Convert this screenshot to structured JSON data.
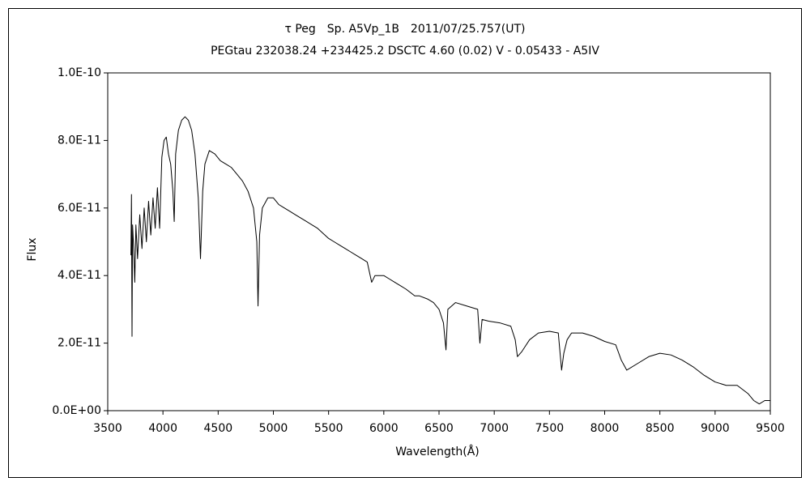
{
  "chart_data": {
    "type": "line",
    "title": "τ Peg　Sp. A5Vp_1B　2011/07/25.757(UT)",
    "subtitle": "PEGtau 232038.24 +234425.2 DSCTC 4.60 (0.02) V - 0.05433 - A5IV",
    "x_label": "Wavelength(Å)",
    "y_label": "Flux",
    "xlim": [
      3500,
      9500
    ],
    "xticks": [
      3500,
      4000,
      4500,
      5000,
      5500,
      6000,
      6500,
      7000,
      7500,
      8000,
      8500,
      9000,
      9500
    ],
    "ylim": [
      0,
      1e-10
    ],
    "yticks": [
      {
        "value": 0,
        "label": "0.0E+00"
      },
      {
        "value": 2e-11,
        "label": "2.0E-11"
      },
      {
        "value": 4e-11,
        "label": "4.0E-11"
      },
      {
        "value": 6e-11,
        "label": "6.0E-11"
      },
      {
        "value": 8e-11,
        "label": "8.0E-11"
      },
      {
        "value": 1e-10,
        "label": "1.0E-10"
      }
    ],
    "grid": false,
    "series": [
      {
        "color": "#000000",
        "x": [
          3710,
          3715,
          3720,
          3725,
          3735,
          3745,
          3755,
          3770,
          3790,
          3810,
          3830,
          3850,
          3870,
          3890,
          3910,
          3930,
          3950,
          3970,
          3990,
          4010,
          4030,
          4050,
          4070,
          4090,
          4102,
          4115,
          4140,
          4170,
          4200,
          4230,
          4260,
          4290,
          4320,
          4340,
          4360,
          4380,
          4420,
          4470,
          4520,
          4570,
          4620,
          4670,
          4720,
          4770,
          4820,
          4850,
          4861,
          4875,
          4900,
          4950,
          5000,
          5050,
          5100,
          5150,
          5200,
          5250,
          5300,
          5350,
          5400,
          5450,
          5500,
          5550,
          5600,
          5650,
          5700,
          5750,
          5800,
          5850,
          5890,
          5920,
          6000,
          6050,
          6100,
          6150,
          6200,
          6280,
          6320,
          6400,
          6450,
          6500,
          6540,
          6563,
          6580,
          6650,
          6750,
          6850,
          6870,
          6890,
          6950,
          7050,
          7150,
          7190,
          7210,
          7250,
          7280,
          7320,
          7400,
          7500,
          7580,
          7610,
          7630,
          7660,
          7700,
          7800,
          7900,
          8000,
          8100,
          8150,
          8200,
          8300,
          8400,
          8500,
          8600,
          8700,
          8800,
          8900,
          9000,
          9100,
          9200,
          9300,
          9350,
          9400,
          9450,
          9500
        ],
        "values": [
          4.6e-11,
          6.4e-11,
          2.2e-11,
          5.5e-11,
          4.8e-11,
          3.8e-11,
          5.5e-11,
          4.5e-11,
          5.8e-11,
          4.8e-11,
          6e-11,
          5e-11,
          6.2e-11,
          5.2e-11,
          6.3e-11,
          5.4e-11,
          6.6e-11,
          5.4e-11,
          7.5e-11,
          8e-11,
          8.1e-11,
          7.6e-11,
          7.3e-11,
          6.5e-11,
          5.6e-11,
          7.6e-11,
          8.3e-11,
          8.6e-11,
          8.7e-11,
          8.6e-11,
          8.3e-11,
          7.6e-11,
          6.3e-11,
          4.5e-11,
          6.5e-11,
          7.3e-11,
          7.7e-11,
          7.6e-11,
          7.4e-11,
          7.3e-11,
          7.2e-11,
          7e-11,
          6.8e-11,
          6.5e-11,
          6e-11,
          5e-11,
          3.1e-11,
          5.2e-11,
          6e-11,
          6.3e-11,
          6.3e-11,
          6.1e-11,
          6e-11,
          5.9e-11,
          5.8e-11,
          5.7e-11,
          5.6e-11,
          5.5e-11,
          5.4e-11,
          5.25e-11,
          5.1e-11,
          5e-11,
          4.9e-11,
          4.8e-11,
          4.7e-11,
          4.6e-11,
          4.5e-11,
          4.4e-11,
          3.8e-11,
          4e-11,
          4e-11,
          3.9e-11,
          3.8e-11,
          3.7e-11,
          3.6e-11,
          3.4e-11,
          3.4e-11,
          3.3e-11,
          3.2e-11,
          3e-11,
          2.6e-11,
          1.8e-11,
          3e-11,
          3.2e-11,
          3.1e-11,
          3e-11,
          2e-11,
          2.7e-11,
          2.65e-11,
          2.6e-11,
          2.5e-11,
          2.1e-11,
          1.6e-11,
          1.75e-11,
          1.9e-11,
          2.1e-11,
          2.3e-11,
          2.35e-11,
          2.3e-11,
          1.2e-11,
          1.7e-11,
          2.1e-11,
          2.3e-11,
          2.3e-11,
          2.2e-11,
          2.05e-11,
          1.95e-11,
          1.5e-11,
          1.2e-11,
          1.4e-11,
          1.6e-11,
          1.7e-11,
          1.65e-11,
          1.5e-11,
          1.3e-11,
          1.05e-11,
          8.5e-12,
          7.5e-12,
          7.5e-12,
          5e-12,
          3e-12,
          2e-12,
          3e-12,
          3e-12
        ]
      }
    ]
  }
}
